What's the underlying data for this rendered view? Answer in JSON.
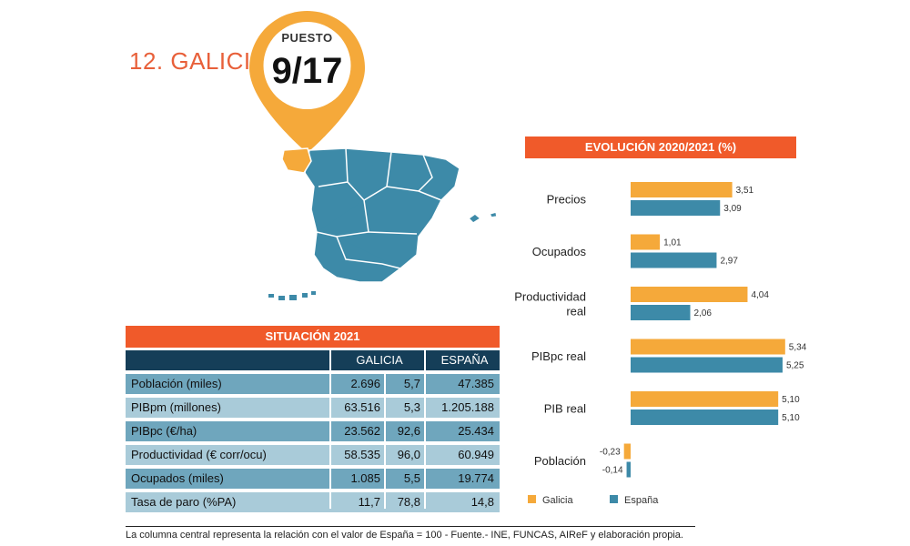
{
  "header": {
    "title": "12. GALICIA",
    "puesto_label": "PUESTO",
    "puesto_value": "9/17"
  },
  "colors": {
    "orange": "#f5a93a",
    "blue": "#3d8aa8",
    "red": "#f05a2a",
    "navy": "#153e58"
  },
  "situacion": {
    "title": "SITUACIÓN 2021",
    "col_galicia": "GALICIA",
    "col_espana": "ESPAÑA",
    "rows": [
      {
        "label": "Población (miles)",
        "galicia": "2.696",
        "ratio": "5,7",
        "espana": "47.385"
      },
      {
        "label": "PIBpm (millones)",
        "galicia": "63.516",
        "ratio": "5,3",
        "espana": "1.205.188"
      },
      {
        "label": "PIBpc (€/ha)",
        "galicia": "23.562",
        "ratio": "92,6",
        "espana": "25.434"
      },
      {
        "label": "Productividad (€ corr/ocu)",
        "galicia": "58.535",
        "ratio": "96,0",
        "espana": "60.949"
      },
      {
        "label": "Ocupados (miles)",
        "galicia": "1.085",
        "ratio": "5,5",
        "espana": "19.774"
      },
      {
        "label": "Tasa de paro (%PA)",
        "galicia": "11,7",
        "ratio": "78,8",
        "espana": "14,8"
      }
    ]
  },
  "footnote": "La columna central representa la relación con el valor de España = 100 - Fuente.- INE, FUNCAS, AIReF y elaboración propia.",
  "chart_data": {
    "type": "bar",
    "orientation": "horizontal",
    "title": "EVOLUCIÓN 2020/2021 (%)",
    "categories": [
      "Precios",
      "Ocupados",
      "Productividad real",
      "PIBpc real",
      "PIB real",
      "Población"
    ],
    "series": [
      {
        "name": "Galicia",
        "color": "#f5a93a",
        "values": [
          3.51,
          1.01,
          4.04,
          5.34,
          5.1,
          -0.23
        ],
        "labels": [
          "3,51",
          "1,01",
          "4,04",
          "5,34",
          "5,10",
          "-0,23"
        ]
      },
      {
        "name": "España",
        "color": "#3d8aa8",
        "values": [
          3.09,
          2.97,
          2.06,
          5.25,
          5.1,
          -0.14
        ],
        "labels": [
          "3,09",
          "2,97",
          "2,06",
          "5,25",
          "5,10",
          "-0,14"
        ]
      }
    ],
    "xlim": [
      -0.3,
      5.5
    ],
    "grid": false,
    "legend": "bottom-left"
  }
}
